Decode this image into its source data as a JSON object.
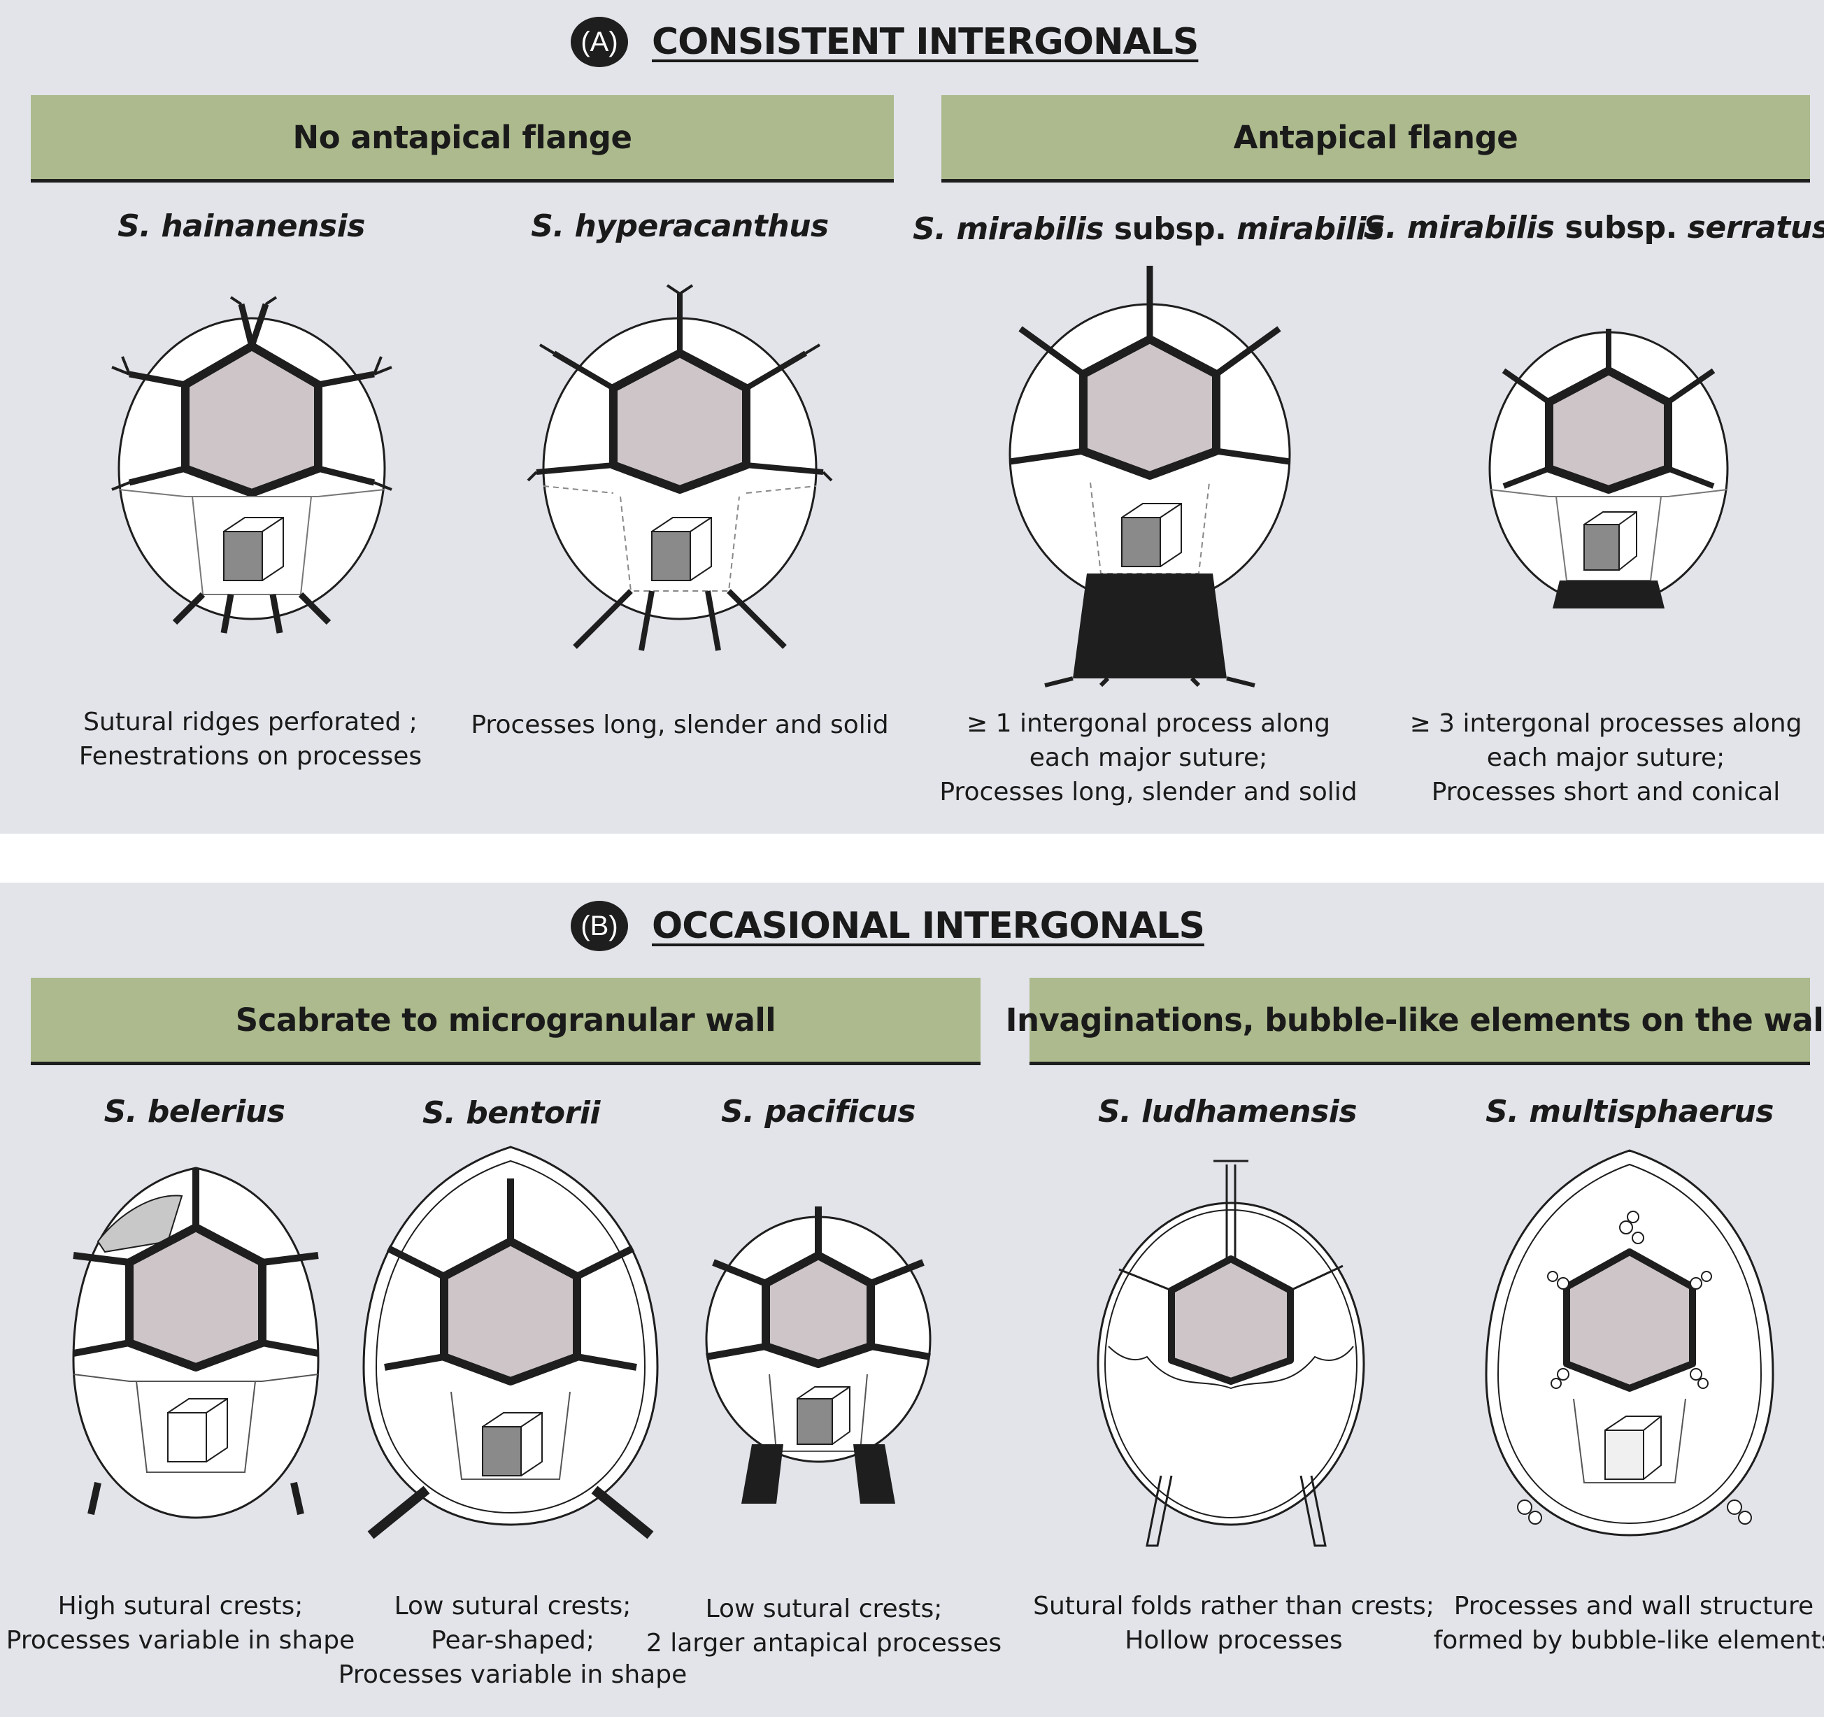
{
  "section_a": {
    "badge": "(A)",
    "title": "CONSISTENT INTERGONALS",
    "groups": [
      {
        "label": "No antapical flange"
      },
      {
        "label": "Antapical flange"
      }
    ],
    "species": [
      {
        "name_parts": [
          "S. hainanensis"
        ],
        "caption": [
          "Sutural ridges perforated ;",
          "Fenestrations on processes"
        ]
      },
      {
        "name_parts": [
          "S. hyperacanthus"
        ],
        "caption": [
          "Processes long, slender and solid"
        ]
      },
      {
        "name_parts": [
          "S. mirabilis",
          " subsp. ",
          "mirabilis"
        ],
        "caption": [
          "≥ 1 intergonal process along",
          "each major suture;",
          "Processes long, slender and solid"
        ]
      },
      {
        "name_parts": [
          "S. mirabilis",
          " subsp. ",
          "serratus"
        ],
        "caption": [
          "≥ 3 intergonal processes along",
          "each major suture;",
          "Processes short and conical"
        ]
      }
    ]
  },
  "section_b": {
    "badge": "(B)",
    "title": "OCCASIONAL INTERGONALS",
    "groups": [
      {
        "label": "Scabrate to microgranular wall"
      },
      {
        "label": "Invaginations, bubble-like elements on the wall"
      }
    ],
    "species": [
      {
        "name_parts": [
          "S. belerius"
        ],
        "caption": [
          "High sutural crests;",
          "Processes variable in shape"
        ]
      },
      {
        "name_parts": [
          "S. bentorii"
        ],
        "caption": [
          "Low sutural crests;",
          "Pear-shaped;",
          "Processes variable in shape"
        ]
      },
      {
        "name_parts": [
          "S. pacificus"
        ],
        "caption": [
          "Low sutural crests;",
          "2 larger antapical processes"
        ]
      },
      {
        "name_parts": [
          "S. ludhamensis"
        ],
        "caption": [
          "Sutural folds rather than crests;",
          "Hollow processes"
        ]
      },
      {
        "name_parts": [
          "S. multisphaerus"
        ],
        "caption": [
          "Processes and wall structure",
          "formed by bubble-like elements"
        ]
      }
    ]
  },
  "colors": {
    "panel_background": "#e3e4ea",
    "banner_green": "#acba8d",
    "plate_grey": "#cdc5c8",
    "ink": "#1e1e1e"
  }
}
